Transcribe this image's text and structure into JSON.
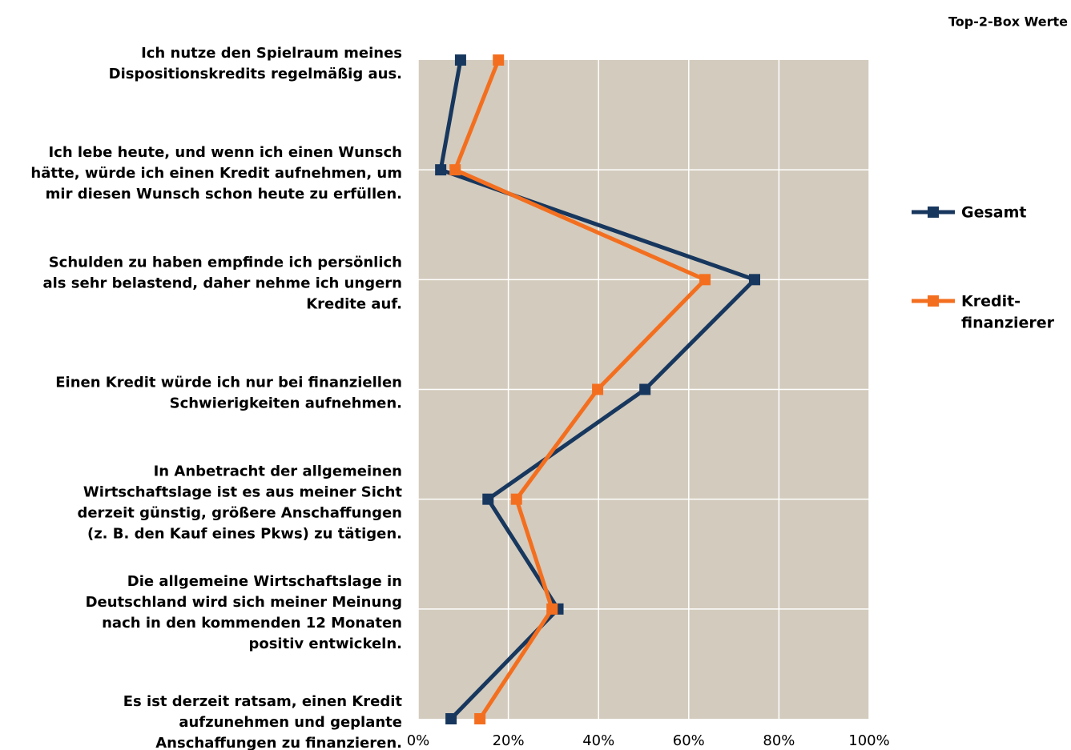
{
  "chart_data": {
    "type": "line",
    "title": "Top-2-Box Werte",
    "categories": [
      [
        "Ich nutze den Spielraum meines",
        "Dispositionskredits regelmäßig aus."
      ],
      [
        "Ich lebe heute, und wenn ich einen Wunsch",
        "hätte, würde ich einen Kredit aufnehmen, um",
        "mir diesen Wunsch schon heute zu erfüllen."
      ],
      [
        "Schulden zu haben empfinde ich persönlich",
        "als sehr belastend, daher nehme ich ungern",
        "Kredite auf."
      ],
      [
        "Einen Kredit würde ich nur bei finanziellen",
        "Schwierigkeiten aufnehmen."
      ],
      [
        "In Anbetracht der allgemeinen",
        "Wirtschaftslage ist es aus meiner Sicht",
        "derzeit günstig, größere Anschaffungen",
        "(z. B. den Kauf eines Pkws) zu tätigen."
      ],
      [
        "Die allgemeine Wirtschaftslage in",
        "Deutschland wird sich meiner Meinung",
        "nach in den kommenden 12 Monaten",
        "positiv entwickeln."
      ],
      [
        "Es ist derzeit ratsam, einen Kredit",
        "aufzunehmen und geplante",
        "Anschaffungen zu finanzieren."
      ]
    ],
    "series": [
      {
        "name": "Gesamt",
        "color": "#17375e",
        "values": [
          9.4,
          5,
          74.6,
          50.3,
          15.5,
          31,
          7.3
        ]
      },
      {
        "name": [
          "Kredit-",
          "finanzierer"
        ],
        "color": "#f36f1f",
        "values": [
          17.8,
          8.2,
          63.6,
          39.8,
          21.8,
          29.7,
          13.7
        ]
      }
    ],
    "xlim": [
      0,
      100
    ],
    "xticks": [
      {
        "value": 0,
        "label": "0%"
      },
      {
        "value": 20,
        "label": "20%"
      },
      {
        "value": 40,
        "label": "40%"
      },
      {
        "value": 60,
        "label": "60%"
      },
      {
        "value": 80,
        "label": "80%"
      },
      {
        "value": 100,
        "label": "100%"
      }
    ],
    "grid": true,
    "plot_background": "#d3cbbd",
    "legend": "right"
  }
}
